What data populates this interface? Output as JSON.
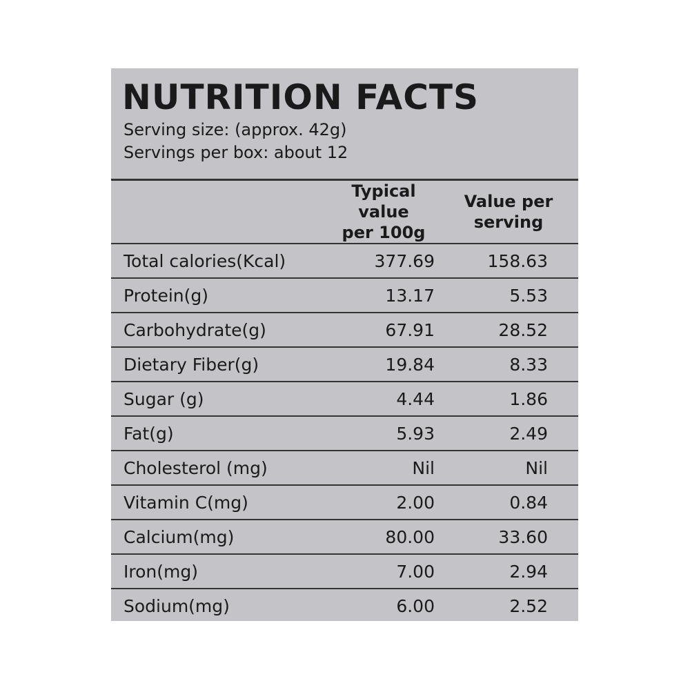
{
  "title": "NUTRITION FACTS",
  "serving_size": "Serving size: (approx. 42g)",
  "servings_per_box": "Servings per box: about 12",
  "columns": {
    "per100_line1": "Typical value",
    "per100_line2": "per 100g",
    "serving_line1": "Value per",
    "serving_line2": "serving"
  },
  "rows": [
    {
      "name": "Total calories(Kcal)",
      "per100": "377.69",
      "serving": "158.63"
    },
    {
      "name": "Protein(g)",
      "per100": "13.17",
      "serving": "5.53"
    },
    {
      "name": "Carbohydrate(g)",
      "per100": "67.91",
      "serving": "28.52"
    },
    {
      "name": "Dietary Fiber(g)",
      "per100": "19.84",
      "serving": "8.33"
    },
    {
      "name": "Sugar (g)",
      "per100": "4.44",
      "serving": "1.86"
    },
    {
      "name": "Fat(g)",
      "per100": "5.93",
      "serving": "2.49"
    },
    {
      "name": "Cholesterol (mg)",
      "per100": "Nil",
      "serving": "Nil"
    },
    {
      "name": "Vitamin C(mg)",
      "per100": "2.00",
      "serving": "0.84"
    },
    {
      "name": "Calcium(mg)",
      "per100": "80.00",
      "serving": "33.60"
    },
    {
      "name": "Iron(mg)",
      "per100": "7.00",
      "serving": "2.94"
    },
    {
      "name": "Sodium(mg)",
      "per100": "6.00",
      "serving": "2.52"
    }
  ],
  "colors": {
    "panel": "#c4c3c8",
    "ink": "#1a1a1a",
    "rule": "#333333"
  }
}
